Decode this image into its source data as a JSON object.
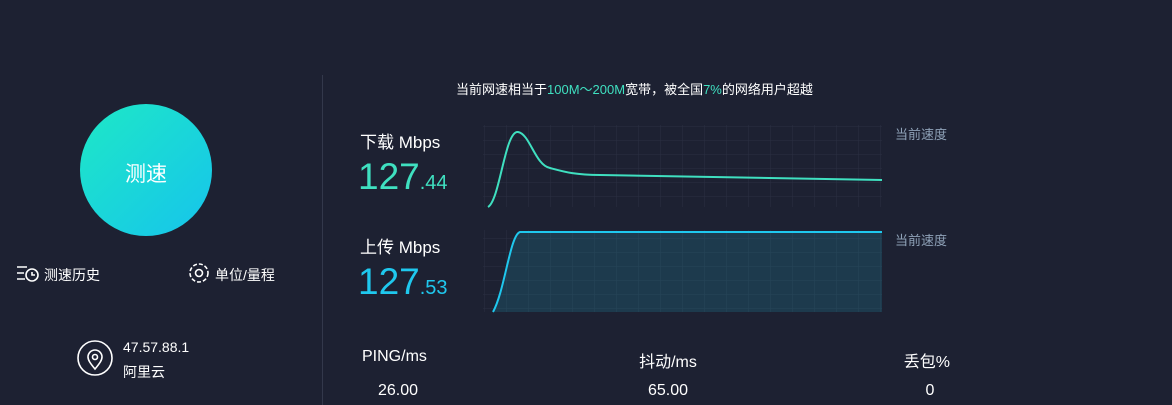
{
  "start_button": "测速",
  "history": "测速历史",
  "units": "单位/量程",
  "server": {
    "ip": "47.57.88.1",
    "provider": "阿里云"
  },
  "headline": [
    "当前网速相当于",
    "100M～200M",
    "宽带，被全国",
    "7%",
    "的网络用户超越"
  ],
  "download": {
    "label": "下载 Mbps",
    "int": "127",
    "frac": ".44",
    "curve_label": "当前速度"
  },
  "upload": {
    "label": "上传 Mbps",
    "int": "127",
    "frac": ".53",
    "curve_label": "当前速度"
  },
  "stats": [
    {
      "label": "PING/ms",
      "value": "26.00"
    },
    {
      "label": "抖动/ms",
      "value": "65.00"
    },
    {
      "label": "丢包%",
      "value": "0"
    }
  ]
}
